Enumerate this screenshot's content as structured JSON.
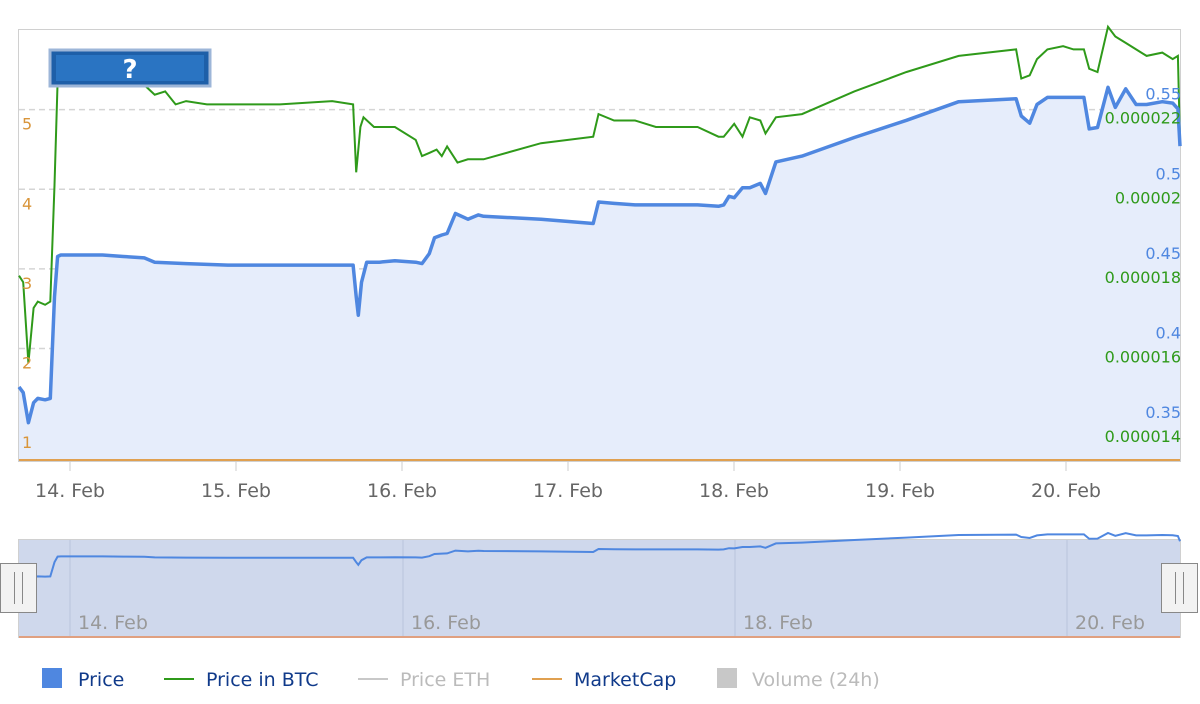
{
  "colors": {
    "price": "#4f87e0",
    "price_btc": "#2f9a1a",
    "price_eth": "#c8c8c8",
    "marketcap": "#e0a050",
    "volume": "#c8c8c8",
    "area_fill": "#e6edfb",
    "grid": "#d5d5d5",
    "navigator_fill": "#cfd8ec",
    "legend_active_text": "#103a8a",
    "legend_inactive_text": "#bbbbbb",
    "axis_label": "#666666"
  },
  "help_button": {
    "icon": "question-mark-icon",
    "label": "?"
  },
  "chart_data": {
    "type": "line",
    "x_axis": {
      "ticks": [
        "14. Feb",
        "15. Feb",
        "16. Feb",
        "17. Feb",
        "18. Feb",
        "19. Feb",
        "20. Feb"
      ],
      "range": [
        "2018-02-13T18:00",
        "2018-02-20T16:00"
      ]
    },
    "y_axes": {
      "marketcap": {
        "ticks": [
          "1",
          "2",
          "3",
          "4",
          "5"
        ],
        "range": [
          0.6,
          6.0
        ]
      },
      "price": {
        "ticks": [
          "0.35",
          "0.4",
          "0.45",
          "0.5",
          "0.55"
        ],
        "range": [
          0.3,
          0.6
        ]
      },
      "price_btc": {
        "ticks": [
          "0.000014",
          "0.000016",
          "0.000018",
          "0.00002",
          "0.000022"
        ],
        "range": [
          1.08e-05,
          2.41e-05
        ]
      }
    },
    "grid": true,
    "legend_position": "bottom",
    "series": [
      {
        "name": "Price",
        "axis": "price",
        "visible": true,
        "points": [
          [
            0.0,
            0.351
          ],
          [
            0.04,
            0.347
          ],
          [
            0.09,
            0.326
          ],
          [
            0.14,
            0.34
          ],
          [
            0.18,
            0.343
          ],
          [
            0.25,
            0.342
          ],
          [
            0.3,
            0.343
          ],
          [
            0.34,
            0.414
          ],
          [
            0.37,
            0.442
          ],
          [
            0.4,
            0.443
          ],
          [
            0.6,
            0.443
          ],
          [
            0.8,
            0.443
          ],
          [
            1.0,
            0.442
          ],
          [
            1.2,
            0.441
          ],
          [
            1.3,
            0.438
          ],
          [
            1.6,
            0.437
          ],
          [
            2.0,
            0.436
          ],
          [
            2.5,
            0.436
          ],
          [
            3.0,
            0.436
          ],
          [
            3.2,
            0.436
          ],
          [
            3.23,
            0.414
          ],
          [
            3.25,
            0.401
          ],
          [
            3.28,
            0.424
          ],
          [
            3.33,
            0.438
          ],
          [
            3.45,
            0.438
          ],
          [
            3.6,
            0.439
          ],
          [
            3.8,
            0.438
          ],
          [
            3.86,
            0.437
          ],
          [
            3.93,
            0.444
          ],
          [
            3.98,
            0.455
          ],
          [
            4.05,
            0.457
          ],
          [
            4.1,
            0.458
          ],
          [
            4.18,
            0.472
          ],
          [
            4.3,
            0.468
          ],
          [
            4.4,
            0.471
          ],
          [
            4.45,
            0.47
          ],
          [
            5.0,
            0.468
          ],
          [
            5.5,
            0.465
          ],
          [
            5.55,
            0.48
          ],
          [
            5.7,
            0.479
          ],
          [
            5.9,
            0.478
          ],
          [
            6.1,
            0.478
          ],
          [
            6.3,
            0.478
          ],
          [
            6.5,
            0.478
          ],
          [
            6.7,
            0.477
          ],
          [
            6.75,
            0.478
          ],
          [
            6.8,
            0.484
          ],
          [
            6.85,
            0.483
          ],
          [
            6.93,
            0.49
          ],
          [
            7.0,
            0.49
          ],
          [
            7.1,
            0.493
          ],
          [
            7.15,
            0.486
          ],
          [
            7.25,
            0.508
          ],
          [
            7.5,
            0.512
          ],
          [
            8.0,
            0.525
          ],
          [
            8.5,
            0.537
          ],
          [
            9.0,
            0.55
          ],
          [
            9.55,
            0.552
          ],
          [
            9.6,
            0.54
          ],
          [
            9.68,
            0.535
          ],
          [
            9.75,
            0.548
          ],
          [
            9.85,
            0.553
          ],
          [
            10.0,
            0.553
          ],
          [
            10.1,
            0.553
          ],
          [
            10.2,
            0.553
          ],
          [
            10.25,
            0.531
          ],
          [
            10.33,
            0.532
          ],
          [
            10.43,
            0.56
          ],
          [
            10.5,
            0.546
          ],
          [
            10.6,
            0.559
          ],
          [
            10.7,
            0.548
          ],
          [
            10.8,
            0.548
          ],
          [
            10.95,
            0.55
          ],
          [
            11.05,
            0.549
          ],
          [
            11.1,
            0.545
          ],
          [
            11.12,
            0.519
          ]
        ]
      },
      {
        "name": "Price in BTC",
        "axis": "price_btc",
        "visible": true,
        "points": [
          [
            0.0,
            1.65e-05
          ],
          [
            0.04,
            1.63e-05
          ],
          [
            0.09,
            1.38e-05
          ],
          [
            0.14,
            1.55e-05
          ],
          [
            0.18,
            1.57e-05
          ],
          [
            0.25,
            1.56e-05
          ],
          [
            0.3,
            1.57e-05
          ],
          [
            0.34,
            1.93e-05
          ],
          [
            0.37,
            2.25e-05
          ],
          [
            0.4,
            2.25e-05
          ],
          [
            0.6,
            2.24e-05
          ],
          [
            0.8,
            2.25e-05
          ],
          [
            1.0,
            2.25e-05
          ],
          [
            1.2,
            2.24e-05
          ],
          [
            1.3,
            2.21e-05
          ],
          [
            1.4,
            2.22e-05
          ],
          [
            1.5,
            2.18e-05
          ],
          [
            1.6,
            2.19e-05
          ],
          [
            1.8,
            2.18e-05
          ],
          [
            2.0,
            2.18e-05
          ],
          [
            2.5,
            2.18e-05
          ],
          [
            3.0,
            2.19e-05
          ],
          [
            3.2,
            2.18e-05
          ],
          [
            3.23,
            1.97e-05
          ],
          [
            3.27,
            2.11e-05
          ],
          [
            3.3,
            2.14e-05
          ],
          [
            3.4,
            2.11e-05
          ],
          [
            3.6,
            2.11e-05
          ],
          [
            3.8,
            2.07e-05
          ],
          [
            3.86,
            2.02e-05
          ],
          [
            3.93,
            2.03e-05
          ],
          [
            4.0,
            2.04e-05
          ],
          [
            4.05,
            2.02e-05
          ],
          [
            4.1,
            2.05e-05
          ],
          [
            4.2,
            2e-05
          ],
          [
            4.3,
            2.01e-05
          ],
          [
            4.45,
            2.01e-05
          ],
          [
            5.0,
            2.06e-05
          ],
          [
            5.5,
            2.08e-05
          ],
          [
            5.55,
            2.15e-05
          ],
          [
            5.7,
            2.13e-05
          ],
          [
            5.9,
            2.13e-05
          ],
          [
            6.1,
            2.11e-05
          ],
          [
            6.3,
            2.11e-05
          ],
          [
            6.5,
            2.11e-05
          ],
          [
            6.7,
            2.08e-05
          ],
          [
            6.75,
            2.08e-05
          ],
          [
            6.8,
            2.1e-05
          ],
          [
            6.85,
            2.12e-05
          ],
          [
            6.93,
            2.08e-05
          ],
          [
            7.0,
            2.14e-05
          ],
          [
            7.1,
            2.13e-05
          ],
          [
            7.15,
            2.09e-05
          ],
          [
            7.25,
            2.14e-05
          ],
          [
            7.5,
            2.15e-05
          ],
          [
            8.0,
            2.22e-05
          ],
          [
            8.5,
            2.28e-05
          ],
          [
            9.0,
            2.33e-05
          ],
          [
            9.55,
            2.35e-05
          ],
          [
            9.6,
            2.26e-05
          ],
          [
            9.68,
            2.27e-05
          ],
          [
            9.75,
            2.32e-05
          ],
          [
            9.85,
            2.35e-05
          ],
          [
            10.0,
            2.36e-05
          ],
          [
            10.1,
            2.35e-05
          ],
          [
            10.2,
            2.35e-05
          ],
          [
            10.25,
            2.29e-05
          ],
          [
            10.33,
            2.28e-05
          ],
          [
            10.43,
            2.42e-05
          ],
          [
            10.5,
            2.39e-05
          ],
          [
            10.6,
            2.37e-05
          ],
          [
            10.7,
            2.35e-05
          ],
          [
            10.8,
            2.33e-05
          ],
          [
            10.95,
            2.34e-05
          ],
          [
            11.05,
            2.32e-05
          ],
          [
            11.1,
            2.33e-05
          ],
          [
            11.12,
            2.06e-05
          ]
        ]
      },
      {
        "name": "Price ETH",
        "visible": false
      },
      {
        "name": "MarketCap",
        "axis": "marketcap",
        "visible": true,
        "note_value": "flat near 0"
      },
      {
        "name": "Volume (24h)",
        "visible": false
      }
    ]
  },
  "navigator": {
    "tick_labels": [
      "14. Feb",
      "16. Feb",
      "18. Feb",
      "20. Feb"
    ]
  },
  "legend": {
    "items": [
      {
        "label": "Price",
        "symbol": "square",
        "active": true
      },
      {
        "label": "Price in BTC",
        "symbol": "line",
        "active": true
      },
      {
        "label": "Price ETH",
        "symbol": "line",
        "active": false
      },
      {
        "label": "MarketCap",
        "symbol": "line",
        "active": true
      },
      {
        "label": "Volume (24h)",
        "symbol": "square",
        "active": false
      }
    ]
  }
}
